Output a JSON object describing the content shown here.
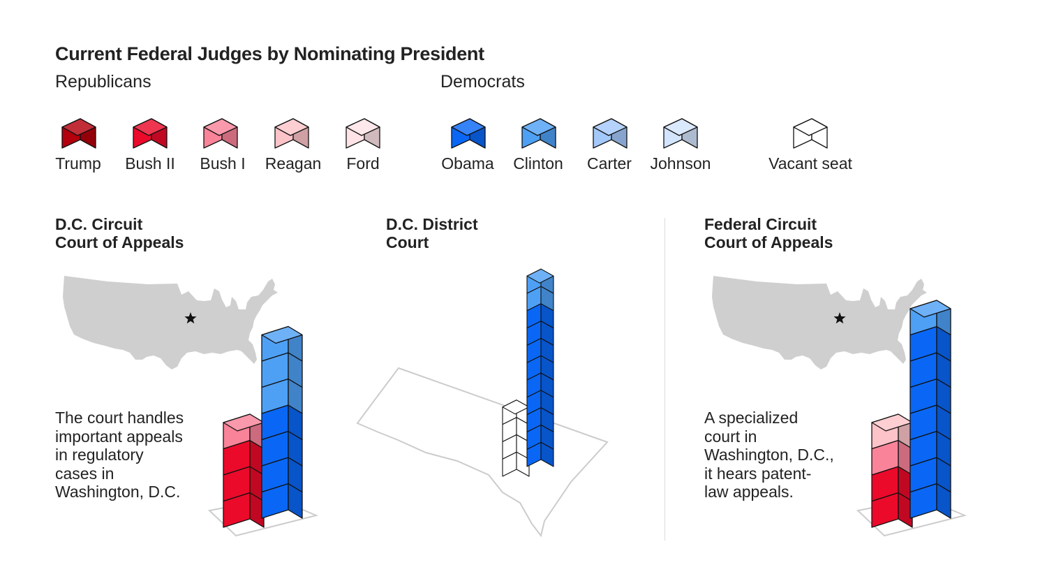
{
  "chart_data": {
    "type": "bar",
    "title": "Current Federal Judges by Nominating President",
    "legend": {
      "groups": [
        {
          "name": "Republicans",
          "entries": [
            {
              "key": "trump",
              "label": "Trump",
              "color": "#b3000c"
            },
            {
              "key": "bush2",
              "label": "Bush II",
              "color": "#eb0a2a"
            },
            {
              "key": "bush1",
              "label": "Bush I",
              "color": "#f98399"
            },
            {
              "key": "reagan",
              "label": "Reagan",
              "color": "#fcc3c8"
            },
            {
              "key": "ford",
              "label": "Ford",
              "color": "#ffe3e6"
            }
          ]
        },
        {
          "name": "Democrats",
          "entries": [
            {
              "key": "obama",
              "label": "Obama",
              "color": "#0a67f5"
            },
            {
              "key": "clinton",
              "label": "Clinton",
              "color": "#4ea0f5"
            },
            {
              "key": "carter",
              "label": "Carter",
              "color": "#a3c8fa"
            },
            {
              "key": "johnson",
              "label": "Johnson",
              "color": "#d3e4fd"
            },
            {
              "key": "vacant",
              "label": "Vacant seat",
              "color": "#ffffff"
            }
          ]
        }
      ]
    },
    "courts": [
      {
        "id": "dc-circuit",
        "title_lines": [
          "D.C. Circuit",
          "Court of Appeals"
        ],
        "description_lines": [
          "The court handles",
          "important appeals",
          "in regulatory",
          "cases in",
          "Washington, D.C."
        ],
        "stacks": [
          [
            "bush2",
            "bush2",
            "bush2",
            "bush1"
          ],
          [
            "obama",
            "obama",
            "obama",
            "obama",
            "clinton",
            "clinton",
            "clinton"
          ]
        ]
      },
      {
        "id": "dc-district",
        "title_lines": [
          "D.C. District",
          "Court"
        ],
        "description_lines": [],
        "stacks": [
          [
            "vacant",
            "vacant",
            "vacant",
            "vacant"
          ],
          [
            "obama",
            "obama",
            "obama",
            "obama",
            "obama",
            "obama",
            "obama",
            "obama",
            "obama",
            "clinton",
            "clinton"
          ]
        ]
      },
      {
        "id": "federal-circuit",
        "title_lines": [
          "Federal Circuit",
          "Court of Appeals"
        ],
        "description_lines": [
          "A specialized",
          "court in",
          "Washington, D.C.,",
          "it hears patent-",
          "law appeals."
        ],
        "stacks": [
          [
            "bush2",
            "bush2",
            "bush1",
            "reagan"
          ],
          [
            "obama",
            "obama",
            "obama",
            "obama",
            "obama",
            "obama",
            "obama",
            "clinton"
          ]
        ]
      }
    ]
  }
}
